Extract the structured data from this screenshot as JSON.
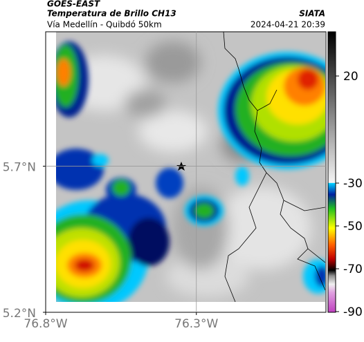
{
  "header": {
    "source": "GOES-EAST",
    "title": "Temperatura de Brillo CH13",
    "organization": "SIATA",
    "subtitle": "Vía Medellín - Quibdó 50km",
    "timestamp": "2024-04-21 20:39"
  },
  "map": {
    "xlim": [
      -76.8,
      -75.87
    ],
    "ylim": [
      5.2,
      6.16
    ],
    "xticks": [
      {
        "value": -76.8,
        "label": "76.8°W"
      },
      {
        "value": -76.3,
        "label": "76.3°W"
      }
    ],
    "yticks": [
      {
        "value": 5.7,
        "label": "5.7°N"
      },
      {
        "value": 5.2,
        "label": "5.2°N"
      }
    ]
  },
  "colorbar": {
    "lim": [
      -90,
      40
    ],
    "ticks": [
      20,
      -30,
      -50,
      -70,
      -90
    ]
  }
}
